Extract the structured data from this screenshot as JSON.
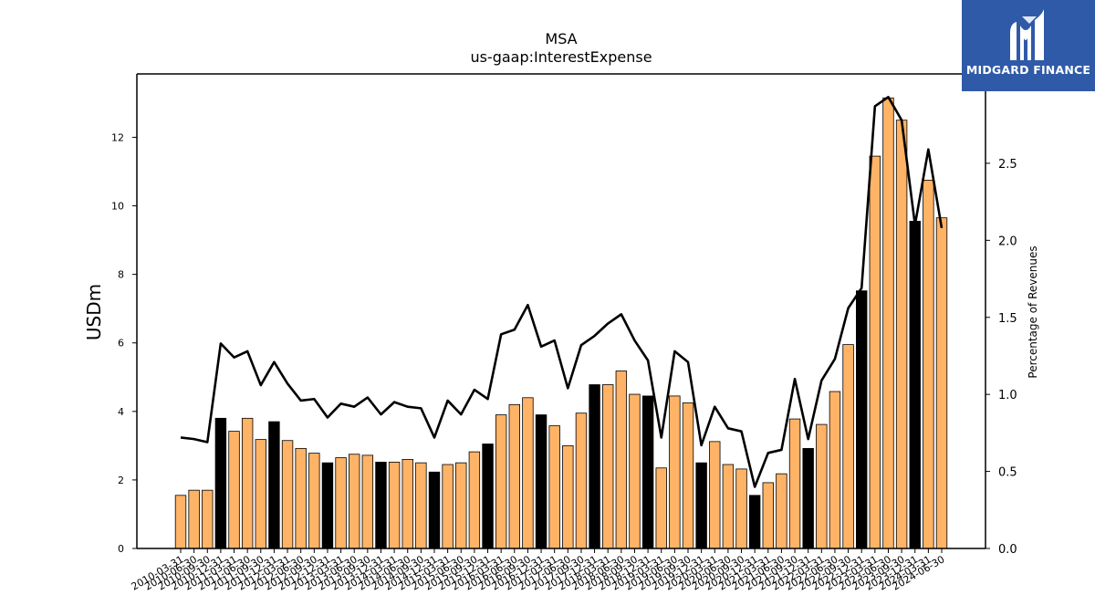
{
  "chart_data": {
    "type": "bar",
    "title": "MSA",
    "subtitle": "us-gaap:InterestExpense",
    "ylabel": "USDm",
    "y2label": "Percentage of Revenues",
    "ylim": [
      0,
      13.85
    ],
    "y2lim": [
      0,
      3.08
    ],
    "yticks": [
      0,
      2,
      4,
      6,
      8,
      10,
      12
    ],
    "y2ticks": [
      "0.0",
      "0.5",
      "1.0",
      "1.5",
      "2.0",
      "2.5"
    ],
    "grid": false,
    "colors": {
      "bar": "#ffb366",
      "bar_highlight": "#000000",
      "line": "#000000"
    },
    "categories": [
      "2010-03-31",
      "2010-06-30",
      "2010-09-30",
      "2010-12-31",
      "2011-03-31",
      "2011-06-30",
      "2011-09-30",
      "2011-12-31",
      "2012-03-31",
      "2012-06-30",
      "2012-09-30",
      "2012-12-31",
      "2013-03-31",
      "2013-06-30",
      "2013-09-30",
      "2013-12-31",
      "2014-03-31",
      "2014-06-30",
      "2014-09-30",
      "2014-12-31",
      "2015-03-31",
      "2015-06-30",
      "2015-09-30",
      "2015-12-31",
      "2016-03-31",
      "2016-06-30",
      "2016-09-30",
      "2016-12-31",
      "2017-03-31",
      "2017-06-30",
      "2017-09-30",
      "2017-12-31",
      "2018-03-31",
      "2018-06-30",
      "2018-09-30",
      "2018-12-31",
      "2019-03-31",
      "2019-06-30",
      "2019-09-30",
      "2019-12-31",
      "2020-03-31",
      "2020-06-30",
      "2020-09-30",
      "2020-12-31",
      "2021-03-31",
      "2021-06-30",
      "2021-09-30",
      "2021-12-31",
      "2022-03-31",
      "2022-06-30",
      "2022-09-30",
      "2022-12-31",
      "2023-03-31",
      "2023-06-30",
      "2023-09-30",
      "2023-12-31",
      "2024-03-31",
      "2024-06-30"
    ],
    "highlight": [
      false,
      false,
      false,
      true,
      false,
      false,
      false,
      true,
      false,
      false,
      false,
      true,
      false,
      false,
      false,
      true,
      false,
      false,
      false,
      true,
      false,
      false,
      false,
      true,
      false,
      false,
      false,
      true,
      false,
      false,
      false,
      true,
      false,
      false,
      false,
      true,
      false,
      false,
      false,
      true,
      false,
      false,
      false,
      true,
      false,
      false,
      false,
      true,
      false,
      false,
      false,
      true,
      false,
      false,
      false,
      true,
      false,
      false
    ],
    "series": [
      {
        "name": "",
        "kind": "bar",
        "axis": "left",
        "values": [
          1.55,
          1.7,
          1.7,
          3.8,
          3.42,
          3.8,
          3.18,
          3.7,
          3.15,
          2.92,
          2.78,
          2.5,
          2.65,
          2.75,
          2.72,
          2.52,
          2.52,
          2.6,
          2.5,
          2.23,
          2.45,
          2.5,
          2.82,
          3.05,
          3.9,
          4.2,
          4.4,
          3.9,
          3.58,
          3.0,
          3.95,
          4.78,
          4.78,
          5.18,
          4.5,
          4.45,
          2.35,
          4.45,
          4.25,
          2.5,
          3.12,
          2.45,
          2.32,
          1.55,
          1.92,
          2.18,
          3.78,
          2.92,
          3.62,
          4.58,
          5.95,
          7.52,
          11.45,
          13.15,
          12.5,
          9.55,
          10.75,
          9.65
        ]
      },
      {
        "name": "",
        "kind": "line",
        "axis": "right",
        "values": [
          0.72,
          0.71,
          0.69,
          1.33,
          1.24,
          1.28,
          1.06,
          1.21,
          1.07,
          0.96,
          0.97,
          0.85,
          0.94,
          0.92,
          0.98,
          0.87,
          0.95,
          0.92,
          0.91,
          0.72,
          0.96,
          0.87,
          1.03,
          0.97,
          1.39,
          1.42,
          1.58,
          1.31,
          1.35,
          1.04,
          1.32,
          1.38,
          1.46,
          1.52,
          1.35,
          1.22,
          0.72,
          1.28,
          1.21,
          0.67,
          0.92,
          0.78,
          0.76,
          0.4,
          0.62,
          0.64,
          1.1,
          0.71,
          1.09,
          1.23,
          1.56,
          1.69,
          2.87,
          2.93,
          2.78,
          2.1,
          2.59,
          2.08
        ]
      }
    ]
  },
  "logo": {
    "text": "MIDGARD FINANCE",
    "icon": "midgard-logo-icon"
  }
}
